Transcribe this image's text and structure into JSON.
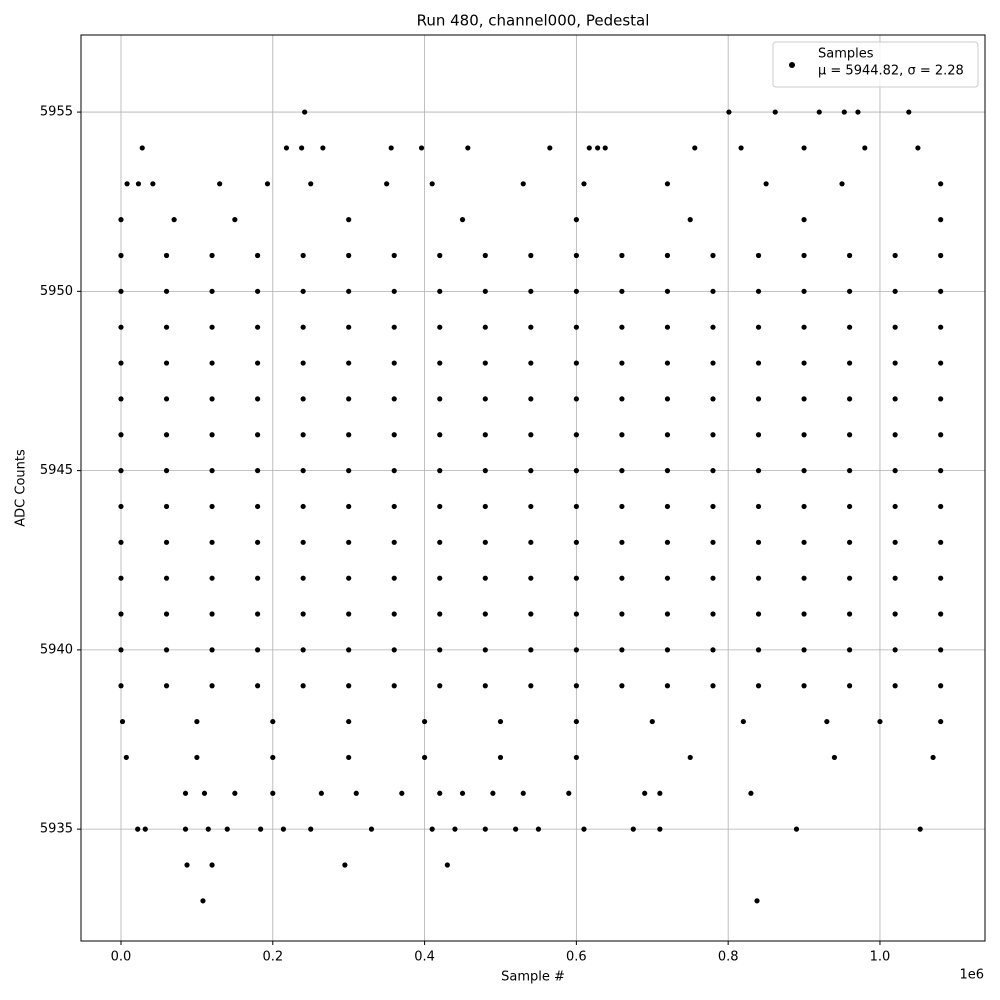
{
  "chart_data": {
    "type": "scatter",
    "title": "Run 480, channel000, Pedestal",
    "xlabel": "Sample #",
    "ylabel": "ADC Counts",
    "x_offset_label": "1e6",
    "legend_note": "μ = 5944.82, σ = 2.28",
    "legend_position": "upper right",
    "grid": true,
    "xlim": [
      -52700,
      1138400
    ],
    "ylim": [
      5931.88,
      5957.15
    ],
    "xticks": [
      {
        "value": 0,
        "label": "0.0"
      },
      {
        "value": 200000,
        "label": "0.2"
      },
      {
        "value": 400000,
        "label": "0.4"
      },
      {
        "value": 600000,
        "label": "0.6"
      },
      {
        "value": 800000,
        "label": "0.8"
      },
      {
        "value": 1000000,
        "label": "1.0"
      }
    ],
    "yticks": [
      5935,
      5940,
      5945,
      5950,
      5955
    ],
    "series": [
      {
        "name": "Samples",
        "color": "#000000",
        "x": [
          0,
          60000,
          120000,
          180000,
          240000,
          300000,
          360000,
          420000,
          480000,
          540000,
          600000,
          660000,
          720000,
          780000,
          840000,
          900000,
          960000,
          1020000,
          1080000,
          0,
          60000,
          120000,
          180000,
          240000,
          300000,
          360000,
          420000,
          480000,
          540000,
          600000,
          660000,
          720000,
          780000,
          840000,
          900000,
          960000,
          1020000,
          1080000,
          0,
          60000,
          120000,
          180000,
          240000,
          300000,
          360000,
          420000,
          480000,
          540000,
          600000,
          660000,
          720000,
          780000,
          840000,
          900000,
          960000,
          1020000,
          1080000,
          0,
          60000,
          120000,
          180000,
          240000,
          300000,
          360000,
          420000,
          480000,
          540000,
          600000,
          660000,
          720000,
          780000,
          840000,
          900000,
          960000,
          1020000,
          1080000,
          0,
          60000,
          120000,
          180000,
          240000,
          300000,
          360000,
          420000,
          480000,
          540000,
          600000,
          660000,
          720000,
          780000,
          840000,
          900000,
          960000,
          1020000,
          1080000,
          0,
          60000,
          120000,
          180000,
          240000,
          300000,
          360000,
          420000,
          480000,
          540000,
          600000,
          660000,
          720000,
          780000,
          840000,
          900000,
          960000,
          1020000,
          1080000,
          0,
          60000,
          120000,
          180000,
          240000,
          300000,
          360000,
          420000,
          480000,
          540000,
          600000,
          660000,
          720000,
          780000,
          840000,
          900000,
          960000,
          1020000,
          1080000,
          0,
          60000,
          120000,
          180000,
          240000,
          300000,
          360000,
          420000,
          480000,
          540000,
          600000,
          660000,
          720000,
          780000,
          840000,
          900000,
          960000,
          1020000,
          1080000,
          0,
          60000,
          120000,
          180000,
          240000,
          300000,
          360000,
          420000,
          480000,
          540000,
          600000,
          660000,
          720000,
          780000,
          840000,
          900000,
          960000,
          1020000,
          1080000,
          0,
          60000,
          120000,
          180000,
          240000,
          300000,
          360000,
          420000,
          480000,
          540000,
          600000,
          660000,
          720000,
          780000,
          840000,
          900000,
          960000,
          1020000,
          1080000,
          0,
          60000,
          120000,
          180000,
          240000,
          300000,
          360000,
          420000,
          480000,
          540000,
          600000,
          660000,
          720000,
          780000,
          840000,
          900000,
          960000,
          1020000,
          1080000,
          0,
          60000,
          120000,
          180000,
          240000,
          300000,
          360000,
          420000,
          480000,
          540000,
          600000,
          660000,
          720000,
          780000,
          840000,
          900000,
          960000,
          1020000,
          1080000,
          0,
          60000,
          120000,
          180000,
          240000,
          300000,
          360000,
          420000,
          480000,
          540000,
          600000,
          660000,
          720000,
          780000,
          840000,
          900000,
          960000,
          1020000,
          1080000,
          242000,
          801000,
          862000,
          920000,
          953000,
          971000,
          1038000,
          28000,
          218000,
          238000,
          266000,
          356000,
          396000,
          457000,
          565000,
          617000,
          628000,
          638000,
          756000,
          817000,
          900000,
          980000,
          1050000,
          8000,
          23000,
          42000,
          130000,
          193000,
          250000,
          350000,
          410000,
          530000,
          610000,
          720000,
          850000,
          950000,
          1080000,
          0,
          70000,
          150000,
          300000,
          450000,
          600000,
          750000,
          900000,
          1080000,
          2000,
          100000,
          200000,
          300000,
          400000,
          500000,
          600000,
          700000,
          820000,
          930000,
          1000000,
          1080000,
          7000,
          100000,
          200000,
          300000,
          400000,
          500000,
          600000,
          750000,
          940000,
          1070000,
          85000,
          110000,
          150000,
          200000,
          264000,
          310000,
          370000,
          420000,
          450000,
          490000,
          530000,
          590000,
          690000,
          710000,
          830000,
          22000,
          32000,
          85000,
          115000,
          140000,
          184000,
          214000,
          250000,
          330000,
          410000,
          440000,
          480000,
          520000,
          550000,
          610000,
          675000,
          710000,
          890000,
          1053000,
          87000,
          120000,
          295000,
          430000,
          108000,
          838000
        ],
        "values": [
          5951,
          5951,
          5951,
          5951,
          5951,
          5951,
          5951,
          5951,
          5951,
          5951,
          5951,
          5951,
          5951,
          5951,
          5951,
          5951,
          5951,
          5951,
          5951,
          5950,
          5950,
          5950,
          5950,
          5950,
          5950,
          5950,
          5950,
          5950,
          5950,
          5950,
          5950,
          5950,
          5950,
          5950,
          5950,
          5950,
          5950,
          5950,
          5949,
          5949,
          5949,
          5949,
          5949,
          5949,
          5949,
          5949,
          5949,
          5949,
          5949,
          5949,
          5949,
          5949,
          5949,
          5949,
          5949,
          5949,
          5949,
          5948,
          5948,
          5948,
          5948,
          5948,
          5948,
          5948,
          5948,
          5948,
          5948,
          5948,
          5948,
          5948,
          5948,
          5948,
          5948,
          5948,
          5948,
          5948,
          5947,
          5947,
          5947,
          5947,
          5947,
          5947,
          5947,
          5947,
          5947,
          5947,
          5947,
          5947,
          5947,
          5947,
          5947,
          5947,
          5947,
          5947,
          5947,
          5946,
          5946,
          5946,
          5946,
          5946,
          5946,
          5946,
          5946,
          5946,
          5946,
          5946,
          5946,
          5946,
          5946,
          5946,
          5946,
          5946,
          5946,
          5946,
          5945,
          5945,
          5945,
          5945,
          5945,
          5945,
          5945,
          5945,
          5945,
          5945,
          5945,
          5945,
          5945,
          5945,
          5945,
          5945,
          5945,
          5945,
          5945,
          5944,
          5944,
          5944,
          5944,
          5944,
          5944,
          5944,
          5944,
          5944,
          5944,
          5944,
          5944,
          5944,
          5944,
          5944,
          5944,
          5944,
          5944,
          5944,
          5943,
          5943,
          5943,
          5943,
          5943,
          5943,
          5943,
          5943,
          5943,
          5943,
          5943,
          5943,
          5943,
          5943,
          5943,
          5943,
          5943,
          5943,
          5943,
          5942,
          5942,
          5942,
          5942,
          5942,
          5942,
          5942,
          5942,
          5942,
          5942,
          5942,
          5942,
          5942,
          5942,
          5942,
          5942,
          5942,
          5942,
          5942,
          5941,
          5941,
          5941,
          5941,
          5941,
          5941,
          5941,
          5941,
          5941,
          5941,
          5941,
          5941,
          5941,
          5941,
          5941,
          5941,
          5941,
          5941,
          5941,
          5940,
          5940,
          5940,
          5940,
          5940,
          5940,
          5940,
          5940,
          5940,
          5940,
          5940,
          5940,
          5940,
          5940,
          5940,
          5940,
          5940,
          5940,
          5940,
          5939,
          5939,
          5939,
          5939,
          5939,
          5939,
          5939,
          5939,
          5939,
          5939,
          5939,
          5939,
          5939,
          5939,
          5939,
          5939,
          5939,
          5939,
          5939,
          5955,
          5955,
          5955,
          5955,
          5955,
          5955,
          5955,
          5954,
          5954,
          5954,
          5954,
          5954,
          5954,
          5954,
          5954,
          5954,
          5954,
          5954,
          5954,
          5954,
          5954,
          5954,
          5954,
          5953,
          5953,
          5953,
          5953,
          5953,
          5953,
          5953,
          5953,
          5953,
          5953,
          5953,
          5953,
          5953,
          5953,
          5952,
          5952,
          5952,
          5952,
          5952,
          5952,
          5952,
          5952,
          5952,
          5938,
          5938,
          5938,
          5938,
          5938,
          5938,
          5938,
          5938,
          5938,
          5938,
          5938,
          5938,
          5937,
          5937,
          5937,
          5937,
          5937,
          5937,
          5937,
          5937,
          5937,
          5937,
          5936,
          5936,
          5936,
          5936,
          5936,
          5936,
          5936,
          5936,
          5936,
          5936,
          5936,
          5936,
          5936,
          5936,
          5936,
          5935,
          5935,
          5935,
          5935,
          5935,
          5935,
          5935,
          5935,
          5935,
          5935,
          5935,
          5935,
          5935,
          5935,
          5935,
          5935,
          5935,
          5935,
          5935,
          5934,
          5934,
          5934,
          5934,
          5933,
          5933
        ]
      }
    ]
  }
}
